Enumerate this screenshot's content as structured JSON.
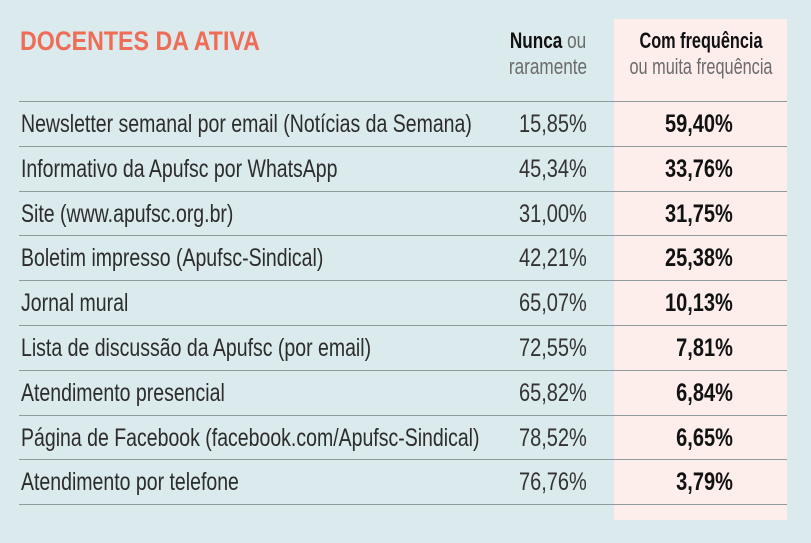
{
  "title": "DOCENTES DA ATIVA",
  "headers": {
    "col1_bold": "Nunca",
    "col1_rest_a": " ou",
    "col1_line2": "raramente",
    "col2_bold": "Com frequência",
    "col2_line2": "ou muita frequência"
  },
  "colors": {
    "title": "#ef6c57",
    "background": "#dbeaec",
    "highlight": "#fdeeec"
  },
  "chart_data": {
    "type": "table",
    "title": "DOCENTES DA ATIVA",
    "columns": [
      "Nunca ou raramente",
      "Com frequência ou muita frequência"
    ],
    "rows": [
      {
        "label": "Newsletter semanal por email (Notícias da Semana)",
        "v1": "15,85%",
        "v2": "59,40%"
      },
      {
        "label": "Informativo da Apufsc por WhatsApp",
        "v1": "45,34%",
        "v2": "33,76%"
      },
      {
        "label": "Site (www.apufsc.org.br)",
        "v1": "31,00%",
        "v2": "31,75%"
      },
      {
        "label": "Boletim impresso (Apufsc-Sindical)",
        "v1": "42,21%",
        "v2": "25,38%"
      },
      {
        "label": "Jornal mural",
        "v1": "65,07%",
        "v2": "10,13%"
      },
      {
        "label": "Lista de discussão da Apufsc (por email)",
        "v1": "72,55%",
        "v2": "7,81%"
      },
      {
        "label": "Atendimento presencial",
        "v1": "65,82%",
        "v2": "6,84%"
      },
      {
        "label": "Página de Facebook (facebook.com/Apufsc-Sindical)",
        "v1": "78,52%",
        "v2": "6,65%"
      },
      {
        "label": "Atendimento por telefone",
        "v1": "76,76%",
        "v2": "3,79%"
      }
    ]
  }
}
